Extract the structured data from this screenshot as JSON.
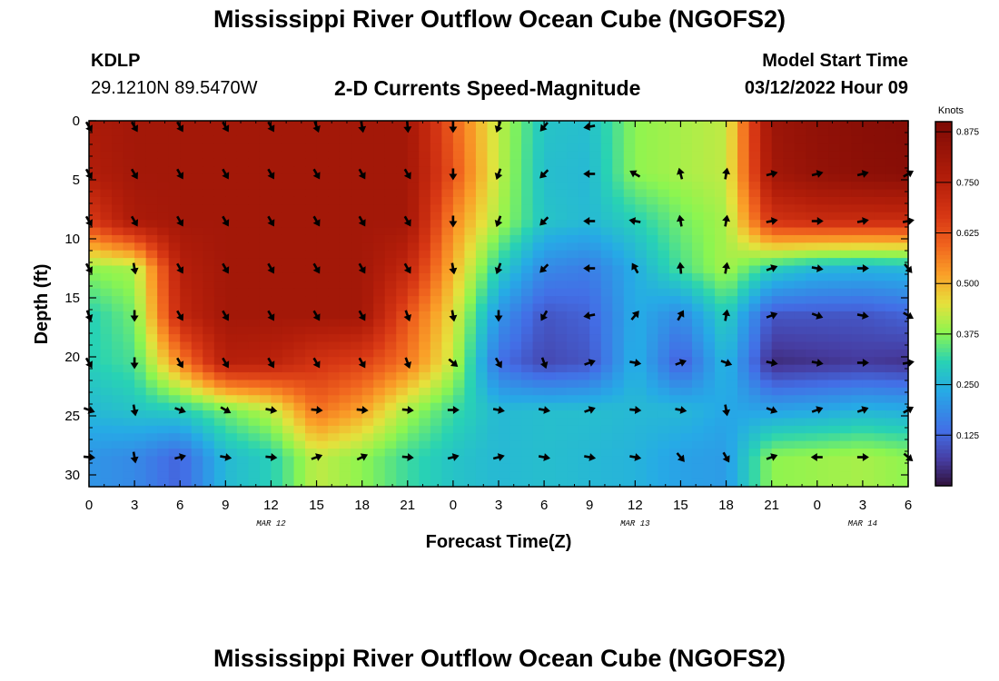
{
  "page": {
    "title": "Mississippi River Outflow Ocean Cube (NGOFS2)",
    "title_bottom": "Mississippi River Outflow Ocean Cube (NGOFS2)",
    "station_id": "KDLP",
    "station_coords": "29.1210N  89.5470W",
    "subtitle": "2-D Currents Speed-Magnitude",
    "model_start_label": "Model Start Time",
    "model_start_value": "03/12/2022 Hour 09"
  },
  "chart_data": {
    "type": "heatmap",
    "title": "2-D Currents Speed-Magnitude",
    "xlabel": "Forecast Time(Z)",
    "ylabel": "Depth (ft)",
    "x_ticks": [
      "0",
      "3",
      "6",
      "9",
      "12",
      "15",
      "18",
      "21",
      "0",
      "3",
      "6",
      "9",
      "12",
      "15",
      "18",
      "21",
      "0",
      "3",
      "6"
    ],
    "x_range_hours": [
      0,
      54
    ],
    "date_labels": [
      {
        "text": "MAR 12",
        "at_hour": 12
      },
      {
        "text": "MAR 13",
        "at_hour": 36
      },
      {
        "text": "MAR 14",
        "at_hour": 51
      }
    ],
    "y_ticks": [
      0,
      5,
      10,
      15,
      20,
      25,
      30
    ],
    "ylim": [
      0,
      31
    ],
    "y_inverted": true,
    "colorbar": {
      "label": "Knots",
      "ticks": [
        "0.875",
        "0.750",
        "0.625",
        "0.500",
        "0.375",
        "0.250",
        "0.125"
      ],
      "range": [
        0.0,
        0.9
      ]
    },
    "speed_knots": {
      "hours": [
        0,
        3,
        6,
        9,
        12,
        15,
        18,
        21,
        24,
        27,
        30,
        33,
        36,
        39,
        42,
        45,
        48,
        51,
        54
      ],
      "depths": [
        0,
        4.5,
        8.5,
        12.5,
        16.5,
        20.5,
        24.5,
        28.5
      ],
      "values": [
        [
          0.78,
          0.8,
          0.8,
          0.8,
          0.8,
          0.8,
          0.8,
          0.8,
          0.6,
          0.42,
          0.28,
          0.27,
          0.38,
          0.4,
          0.42,
          0.82,
          0.85,
          0.87,
          0.88
        ],
        [
          0.76,
          0.8,
          0.8,
          0.8,
          0.8,
          0.8,
          0.8,
          0.8,
          0.62,
          0.42,
          0.27,
          0.26,
          0.38,
          0.4,
          0.42,
          0.8,
          0.84,
          0.86,
          0.87
        ],
        [
          0.66,
          0.78,
          0.8,
          0.8,
          0.8,
          0.8,
          0.8,
          0.8,
          0.55,
          0.4,
          0.28,
          0.26,
          0.3,
          0.36,
          0.4,
          0.68,
          0.7,
          0.7,
          0.7
        ],
        [
          0.38,
          0.4,
          0.75,
          0.8,
          0.8,
          0.8,
          0.8,
          0.72,
          0.5,
          0.3,
          0.18,
          0.16,
          0.24,
          0.33,
          0.4,
          0.3,
          0.26,
          0.25,
          0.26
        ],
        [
          0.3,
          0.36,
          0.72,
          0.8,
          0.8,
          0.8,
          0.8,
          0.62,
          0.45,
          0.2,
          0.1,
          0.12,
          0.24,
          0.18,
          0.3,
          0.1,
          0.1,
          0.1,
          0.12
        ],
        [
          0.3,
          0.33,
          0.55,
          0.75,
          0.74,
          0.68,
          0.65,
          0.57,
          0.42,
          0.14,
          0.08,
          0.1,
          0.25,
          0.11,
          0.26,
          0.04,
          0.05,
          0.06,
          0.05
        ],
        [
          0.26,
          0.28,
          0.3,
          0.36,
          0.42,
          0.58,
          0.52,
          0.4,
          0.32,
          0.26,
          0.27,
          0.27,
          0.26,
          0.26,
          0.23,
          0.22,
          0.23,
          0.25,
          0.24
        ],
        [
          0.2,
          0.18,
          0.12,
          0.26,
          0.3,
          0.42,
          0.38,
          0.32,
          0.28,
          0.26,
          0.27,
          0.26,
          0.25,
          0.22,
          0.21,
          0.38,
          0.39,
          0.4,
          0.38
        ]
      ]
    },
    "current_direction_deg": {
      "hours": [
        0,
        3,
        6,
        9,
        12,
        15,
        18,
        21,
        24,
        27,
        30,
        33,
        36,
        39,
        42,
        45,
        48,
        51,
        54
      ],
      "depths": [
        0.5,
        4.5,
        8.5,
        12.5,
        16.5,
        20.5,
        24.5,
        28.5
      ],
      "values": [
        [
          150,
          150,
          150,
          150,
          150,
          160,
          170,
          175,
          180,
          200,
          220,
          260,
          null,
          null,
          null,
          null,
          null,
          null,
          null
        ],
        [
          150,
          150,
          150,
          150,
          150,
          150,
          150,
          150,
          180,
          200,
          225,
          270,
          300,
          345,
          10,
          75,
          75,
          75,
          60
        ],
        [
          150,
          150,
          150,
          150,
          150,
          150,
          150,
          150,
          180,
          200,
          225,
          270,
          280,
          350,
          10,
          80,
          90,
          80,
          80
        ],
        [
          150,
          170,
          150,
          150,
          150,
          150,
          150,
          150,
          170,
          200,
          225,
          270,
          330,
          355,
          10,
          70,
          100,
          90,
          140
        ],
        [
          160,
          180,
          150,
          150,
          150,
          150,
          150,
          160,
          170,
          180,
          210,
          260,
          40,
          30,
          10,
          70,
          110,
          100,
          120
        ],
        [
          150,
          180,
          150,
          150,
          150,
          150,
          150,
          160,
          130,
          150,
          160,
          70,
          100,
          70,
          110,
          100,
          100,
          90,
          80
        ],
        [
          110,
          170,
          110,
          120,
          100,
          95,
          95,
          95,
          90,
          100,
          100,
          70,
          95,
          100,
          170,
          110,
          70,
          70,
          60
        ],
        [
          95,
          170,
          75,
          100,
          95,
          70,
          65,
          95,
          75,
          75,
          100,
          100,
          100,
          140,
          150,
          70,
          270,
          90,
          130
        ]
      ]
    }
  }
}
